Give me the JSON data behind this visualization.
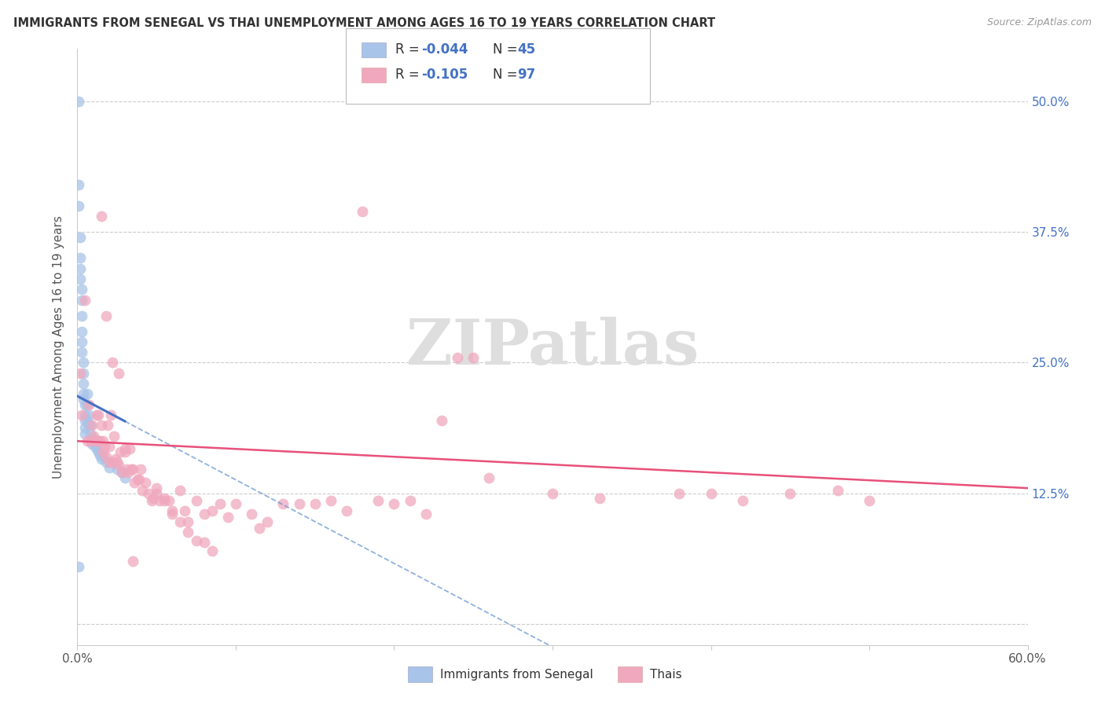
{
  "title": "IMMIGRANTS FROM SENEGAL VS THAI UNEMPLOYMENT AMONG AGES 16 TO 19 YEARS CORRELATION CHART",
  "source": "Source: ZipAtlas.com",
  "ylabel": "Unemployment Among Ages 16 to 19 years",
  "xlim": [
    0,
    0.6
  ],
  "ylim": [
    -0.02,
    0.55
  ],
  "ytick_positions": [
    0.0,
    0.125,
    0.25,
    0.375,
    0.5
  ],
  "ytick_labels_right": [
    "",
    "12.5%",
    "25.0%",
    "37.5%",
    "50.0%"
  ],
  "blue_color": "#a8c4e8",
  "pink_color": "#f0a8be",
  "trendline_blue_solid": "#4472c4",
  "trendline_blue_dash": "#6090d0",
  "trendline_pink": "#e8507a",
  "watermark": "ZIPatlas",
  "blue_x": [
    0.001,
    0.001,
    0.001,
    0.002,
    0.002,
    0.002,
    0.002,
    0.003,
    0.003,
    0.003,
    0.003,
    0.003,
    0.003,
    0.004,
    0.004,
    0.004,
    0.004,
    0.004,
    0.005,
    0.005,
    0.005,
    0.005,
    0.005,
    0.006,
    0.006,
    0.006,
    0.007,
    0.007,
    0.008,
    0.008,
    0.009,
    0.009,
    0.01,
    0.011,
    0.012,
    0.013,
    0.014,
    0.015,
    0.016,
    0.018,
    0.02,
    0.025,
    0.028,
    0.03,
    0.001
  ],
  "blue_y": [
    0.5,
    0.42,
    0.4,
    0.37,
    0.35,
    0.34,
    0.33,
    0.32,
    0.31,
    0.295,
    0.28,
    0.27,
    0.26,
    0.25,
    0.24,
    0.23,
    0.22,
    0.215,
    0.21,
    0.2,
    0.195,
    0.188,
    0.182,
    0.22,
    0.21,
    0.195,
    0.2,
    0.19,
    0.19,
    0.182,
    0.178,
    0.172,
    0.175,
    0.17,
    0.168,
    0.165,
    0.162,
    0.158,
    0.16,
    0.155,
    0.15,
    0.148,
    0.145,
    0.14,
    0.055
  ],
  "pink_x": [
    0.002,
    0.003,
    0.005,
    0.006,
    0.007,
    0.008,
    0.009,
    0.01,
    0.011,
    0.012,
    0.013,
    0.013,
    0.014,
    0.015,
    0.016,
    0.016,
    0.017,
    0.018,
    0.019,
    0.02,
    0.02,
    0.021,
    0.022,
    0.023,
    0.024,
    0.025,
    0.026,
    0.027,
    0.028,
    0.03,
    0.031,
    0.032,
    0.033,
    0.034,
    0.035,
    0.036,
    0.038,
    0.039,
    0.04,
    0.041,
    0.043,
    0.045,
    0.047,
    0.048,
    0.05,
    0.052,
    0.055,
    0.058,
    0.06,
    0.065,
    0.068,
    0.07,
    0.075,
    0.08,
    0.085,
    0.09,
    0.095,
    0.1,
    0.11,
    0.115,
    0.12,
    0.13,
    0.14,
    0.15,
    0.16,
    0.17,
    0.18,
    0.19,
    0.2,
    0.21,
    0.22,
    0.23,
    0.24,
    0.25,
    0.26,
    0.3,
    0.33,
    0.38,
    0.4,
    0.42,
    0.45,
    0.48,
    0.5,
    0.05,
    0.055,
    0.06,
    0.065,
    0.07,
    0.075,
    0.08,
    0.085,
    0.015,
    0.018,
    0.022,
    0.026,
    0.03,
    0.035
  ],
  "pink_y": [
    0.24,
    0.2,
    0.31,
    0.175,
    0.21,
    0.175,
    0.19,
    0.18,
    0.175,
    0.2,
    0.175,
    0.2,
    0.175,
    0.19,
    0.175,
    0.165,
    0.17,
    0.16,
    0.19,
    0.17,
    0.155,
    0.2,
    0.155,
    0.18,
    0.158,
    0.155,
    0.152,
    0.165,
    0.145,
    0.168,
    0.148,
    0.145,
    0.168,
    0.148,
    0.148,
    0.135,
    0.138,
    0.138,
    0.148,
    0.128,
    0.135,
    0.125,
    0.118,
    0.12,
    0.125,
    0.118,
    0.12,
    0.118,
    0.105,
    0.128,
    0.108,
    0.098,
    0.118,
    0.105,
    0.108,
    0.115,
    0.102,
    0.115,
    0.105,
    0.092,
    0.098,
    0.115,
    0.115,
    0.115,
    0.118,
    0.108,
    0.395,
    0.118,
    0.115,
    0.118,
    0.105,
    0.195,
    0.255,
    0.255,
    0.14,
    0.125,
    0.12,
    0.125,
    0.125,
    0.118,
    0.125,
    0.128,
    0.118,
    0.13,
    0.118,
    0.108,
    0.098,
    0.088,
    0.08,
    0.078,
    0.07,
    0.39,
    0.295,
    0.25,
    0.24,
    0.165,
    0.06
  ]
}
